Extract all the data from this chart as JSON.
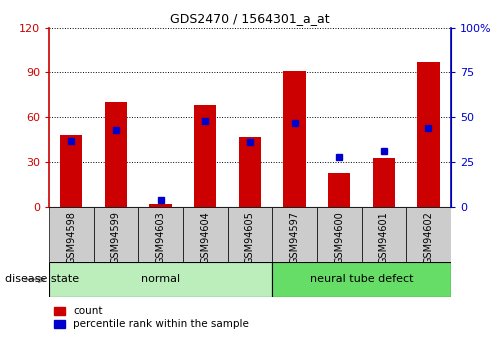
{
  "title": "GDS2470 / 1564301_a_at",
  "samples": [
    "GSM94598",
    "GSM94599",
    "GSM94603",
    "GSM94604",
    "GSM94605",
    "GSM94597",
    "GSM94600",
    "GSM94601",
    "GSM94602"
  ],
  "red_values": [
    48,
    70,
    2,
    68,
    47,
    91,
    23,
    33,
    97
  ],
  "blue_values": [
    37,
    43,
    4,
    48,
    36,
    47,
    28,
    31,
    44
  ],
  "normal_indices": [
    0,
    1,
    2,
    3,
    4
  ],
  "defect_indices": [
    5,
    6,
    7,
    8
  ],
  "normal_label": "normal",
  "defect_label": "neural tube defect",
  "disease_label": "disease state",
  "legend_red": "count",
  "legend_blue": "percentile rank within the sample",
  "left_axis_color": "#cc0000",
  "right_axis_color": "#0000cc",
  "left_ticks": [
    0,
    30,
    60,
    90,
    120
  ],
  "right_ticks": [
    0,
    25,
    50,
    75,
    100
  ],
  "right_tick_labels": [
    "0",
    "25",
    "50",
    "75",
    "100%"
  ],
  "bar_color": "#cc0000",
  "marker_color": "#0000cc",
  "normal_bg": "#bbeebb",
  "defect_bg": "#66dd66",
  "xtick_bg": "#cccccc",
  "grid_color": "#000000",
  "bar_width": 0.5,
  "marker_size": 5,
  "figsize": [
    4.9,
    3.45
  ],
  "dpi": 100
}
